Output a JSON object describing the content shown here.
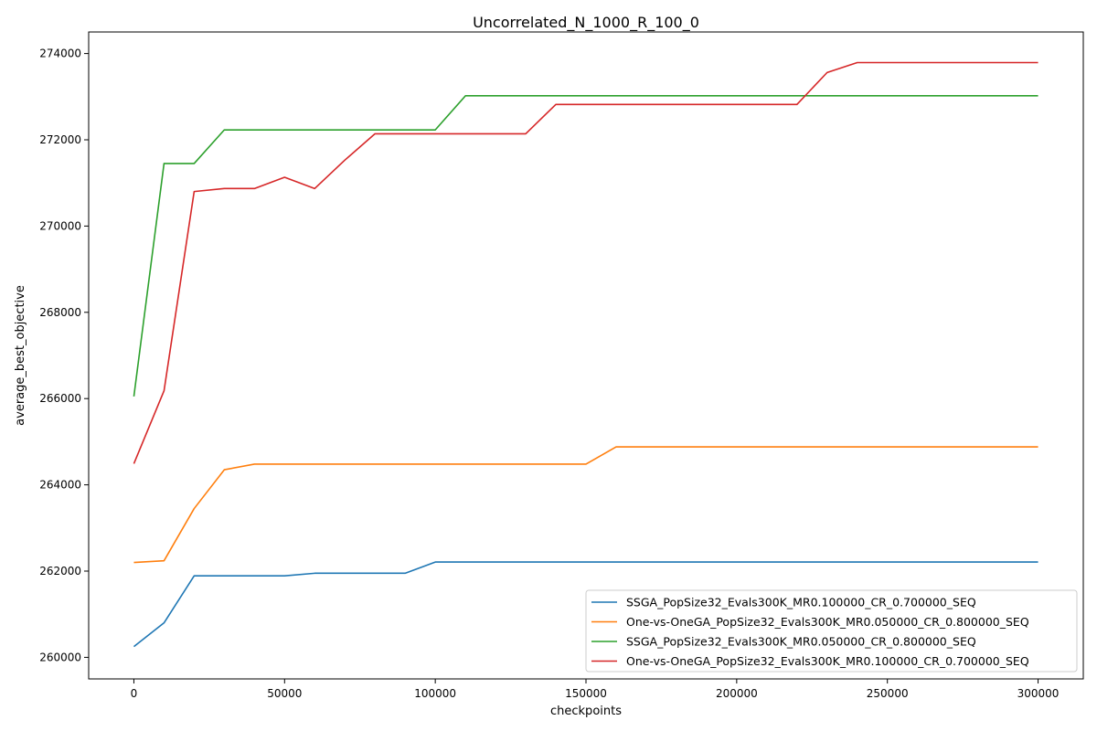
{
  "chart_data": {
    "type": "line",
    "title": "Uncorrelated_N_1000_R_100_0",
    "xlabel": "checkpoints",
    "ylabel": "average_best_objective",
    "xlim": [
      -15000,
      315000
    ],
    "ylim": [
      259500,
      274500
    ],
    "xticks": [
      0,
      50000,
      100000,
      150000,
      200000,
      250000,
      300000
    ],
    "yticks": [
      260000,
      262000,
      264000,
      266000,
      268000,
      270000,
      272000,
      274000
    ],
    "grid": false,
    "legend_position": "lower-right",
    "x": [
      0,
      10000,
      20000,
      30000,
      40000,
      50000,
      60000,
      70000,
      80000,
      90000,
      100000,
      110000,
      120000,
      130000,
      140000,
      150000,
      160000,
      170000,
      180000,
      190000,
      200000,
      210000,
      220000,
      230000,
      240000,
      250000,
      260000,
      270000,
      280000,
      290000,
      300000
    ],
    "series": [
      {
        "name": "SSGA_PopSize32_Evals300K_MR0.100000_CR_0.700000_SEQ",
        "color": "#1f77b4",
        "values": [
          260250,
          260800,
          261890,
          261890,
          261890,
          261890,
          261950,
          261950,
          261950,
          261950,
          262210,
          262210,
          262210,
          262210,
          262210,
          262210,
          262210,
          262210,
          262210,
          262210,
          262210,
          262210,
          262210,
          262210,
          262210,
          262210,
          262210,
          262210,
          262210,
          262210,
          262210
        ]
      },
      {
        "name": "One-vs-OneGA_PopSize32_Evals300K_MR0.050000_CR_0.800000_SEQ",
        "color": "#ff7f0e",
        "values": [
          262200,
          262240,
          263450,
          264350,
          264480,
          264480,
          264480,
          264480,
          264480,
          264480,
          264480,
          264480,
          264480,
          264480,
          264480,
          264480,
          264880,
          264880,
          264880,
          264880,
          264880,
          264880,
          264880,
          264880,
          264880,
          264880,
          264880,
          264880,
          264880,
          264880,
          264880
        ]
      },
      {
        "name": "SSGA_PopSize32_Evals300K_MR0.050000_CR_0.800000_SEQ",
        "color": "#2ca02c",
        "values": [
          266050,
          271450,
          271450,
          272230,
          272230,
          272230,
          272230,
          272230,
          272230,
          272230,
          272230,
          273020,
          273020,
          273020,
          273020,
          273020,
          273020,
          273020,
          273020,
          273020,
          273020,
          273020,
          273020,
          273020,
          273020,
          273020,
          273020,
          273020,
          273020,
          273020,
          273020
        ]
      },
      {
        "name": "One-vs-OneGA_PopSize32_Evals300K_MR0.100000_CR_0.700000_SEQ",
        "color": "#d62728",
        "values": [
          264490,
          266180,
          270800,
          270870,
          270870,
          271130,
          270870,
          271530,
          272140,
          272140,
          272140,
          272140,
          272140,
          272140,
          272820,
          272820,
          272820,
          272820,
          272820,
          272820,
          272820,
          272820,
          272820,
          273560,
          273790,
          273790,
          273790,
          273790,
          273790,
          273790,
          273790
        ]
      }
    ]
  }
}
